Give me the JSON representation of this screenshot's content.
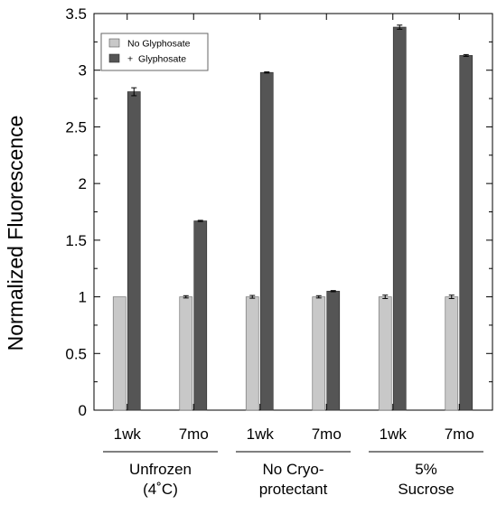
{
  "chart_data": {
    "type": "bar",
    "ylabel": "Normalized Fluorescence",
    "xlabel": "",
    "ylim": [
      0,
      3.5
    ],
    "yticks": [
      "0",
      "0.5",
      "1",
      "1.5",
      "2",
      "2.5",
      "3",
      "3.5"
    ],
    "grid": false,
    "legend_position": "top-left",
    "categories": [
      "1wk",
      "7mo",
      "1wk",
      "7mo",
      "1wk",
      "7mo"
    ],
    "groups": [
      {
        "lines": [
          "Unfrozen",
          "(4˚C)"
        ]
      },
      {
        "lines": [
          "No Cryo-",
          "protectant"
        ]
      },
      {
        "lines": [
          "5%",
          "Sucrose"
        ]
      }
    ],
    "series": [
      {
        "name": "No Glyphosate",
        "color": "#c8c8c8",
        "values": [
          1.0,
          1.0,
          1.0,
          1.0,
          1.0,
          1.0
        ],
        "errors": [
          0.0,
          0.01,
          0.012,
          0.01,
          0.015,
          0.015
        ]
      },
      {
        "name": "+  Glyphosate",
        "color": "#555555",
        "values": [
          2.81,
          1.67,
          2.98,
          1.05,
          3.38,
          3.13
        ],
        "errors": [
          0.035,
          0.005,
          0.005,
          0.005,
          0.018,
          0.008
        ]
      }
    ]
  }
}
